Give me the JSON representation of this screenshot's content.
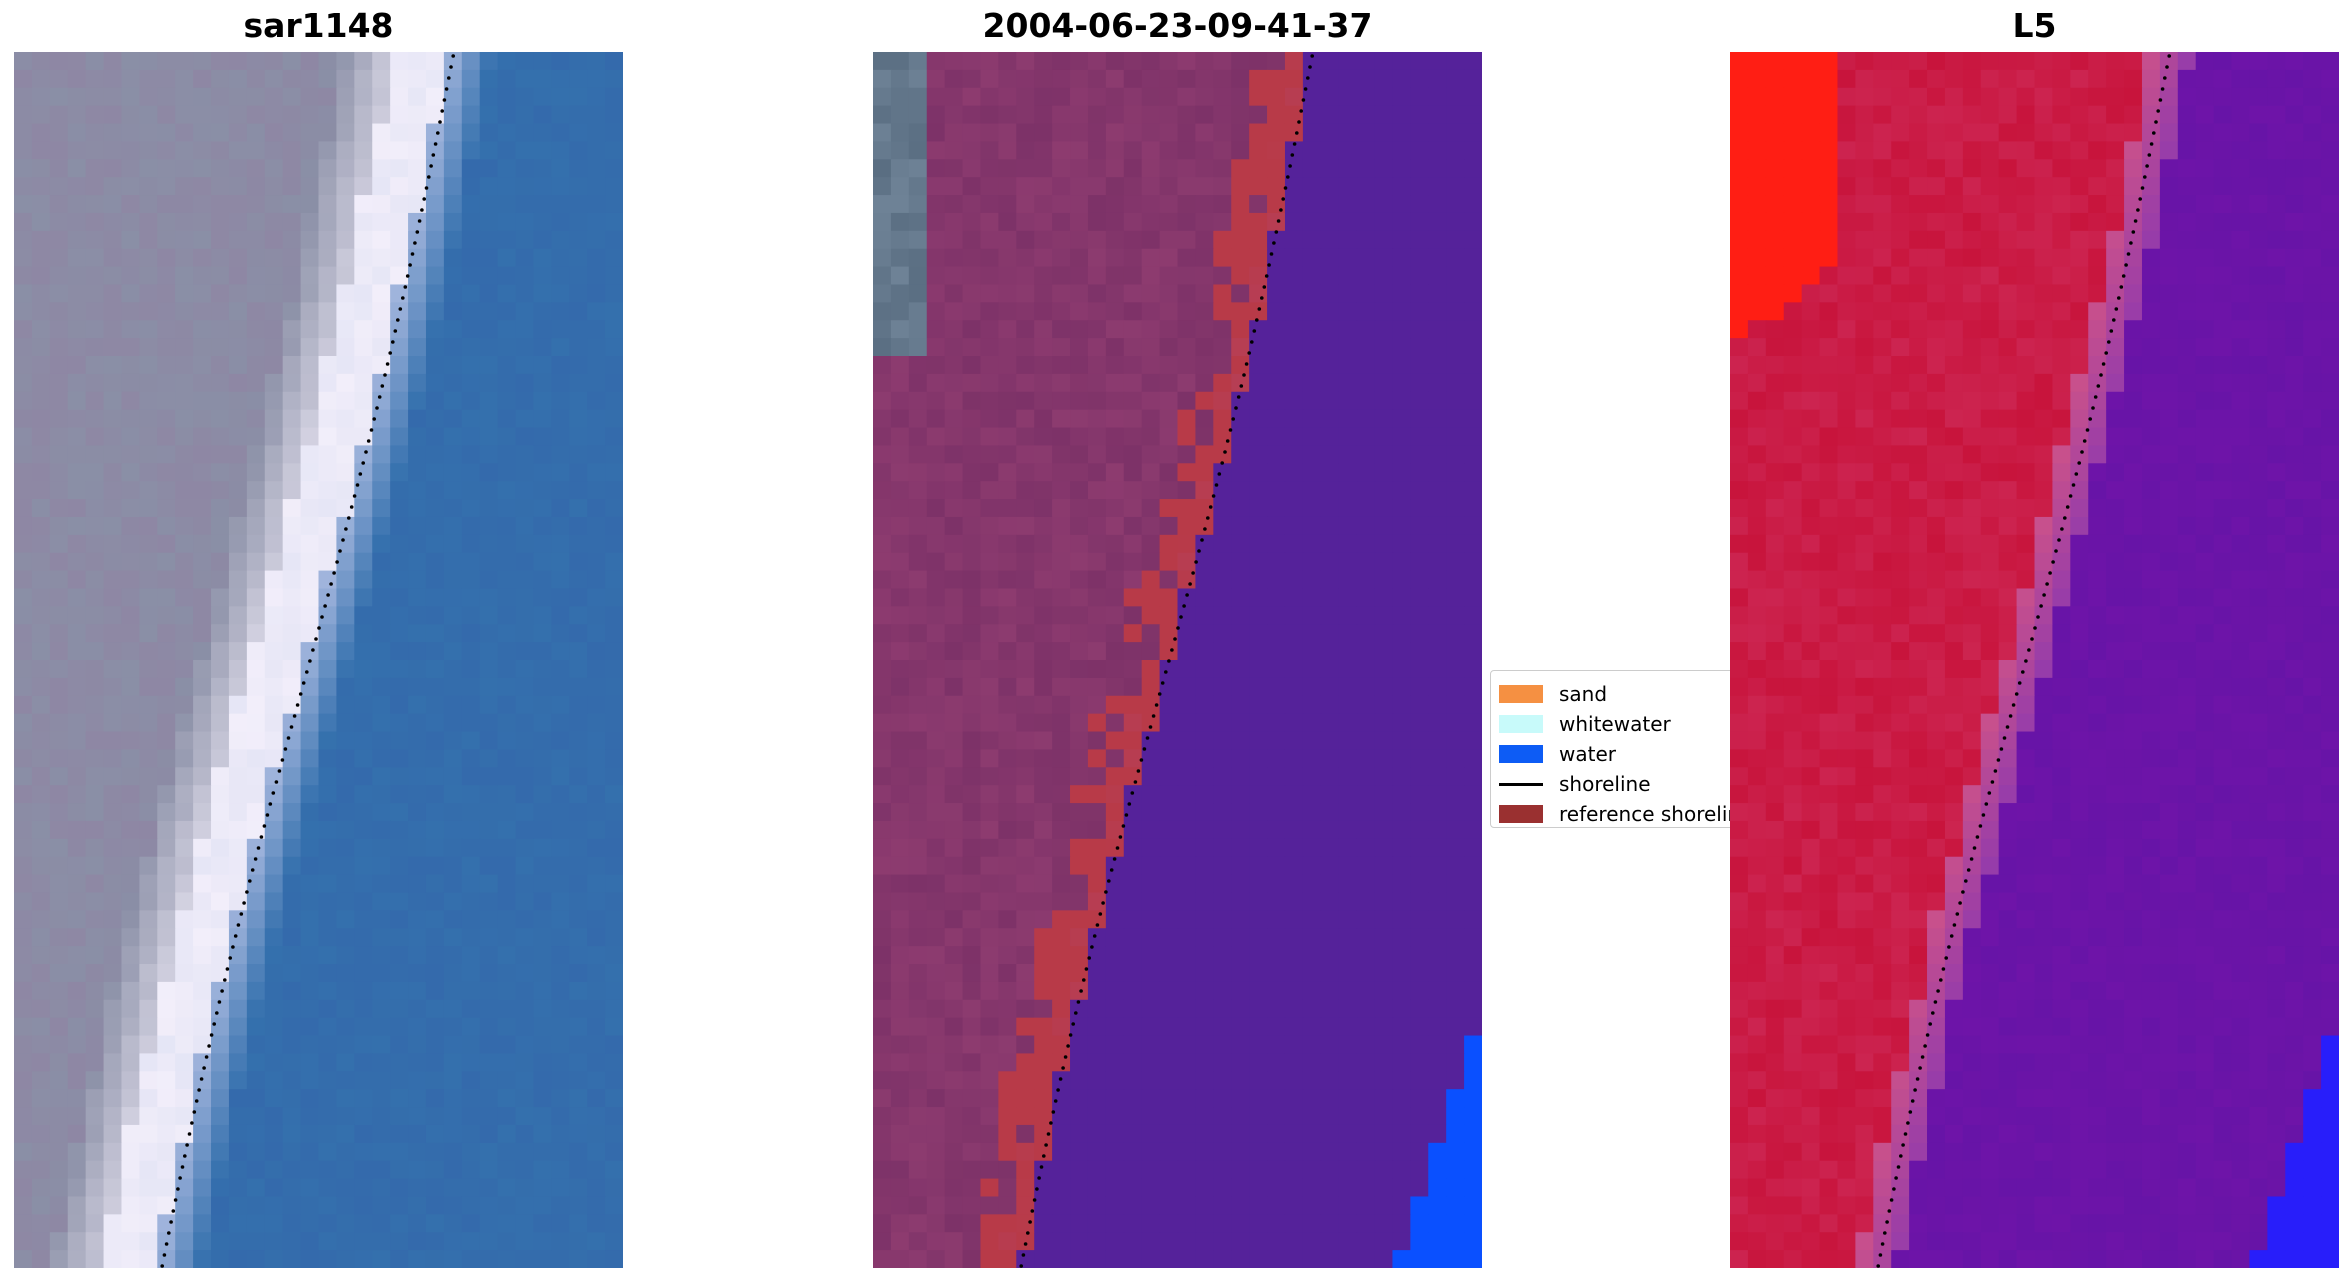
{
  "panels": [
    {
      "title": "sar1148",
      "kind": "rgb"
    },
    {
      "title": "2004-06-23-09-41-37",
      "kind": "classified"
    },
    {
      "title": "L5",
      "kind": "index"
    }
  ],
  "legend": {
    "items": [
      {
        "label": "sand",
        "type": "patch",
        "color": "#f59042"
      },
      {
        "label": "whitewater",
        "type": "patch",
        "color": "#c8fafa"
      },
      {
        "label": "water",
        "type": "patch",
        "color": "#0d5cf5"
      },
      {
        "label": "shoreline",
        "type": "line",
        "color": "#000000"
      },
      {
        "label": "reference shoreline",
        "type": "patch",
        "color": "#9a3030"
      }
    ]
  },
  "colors": {
    "rgb_land": "#8a8fa6",
    "rgb_whitewater": "#f2eefa",
    "rgb_water": "#3470ad",
    "class_land": "#7d3268",
    "class_sand_overlay": "#b83a48",
    "class_water": "#55229a",
    "class_water_bright": "#0a50ff",
    "index_high": "#c8143c",
    "index_low": "#6e14a8",
    "shoreline": "#000000"
  }
}
